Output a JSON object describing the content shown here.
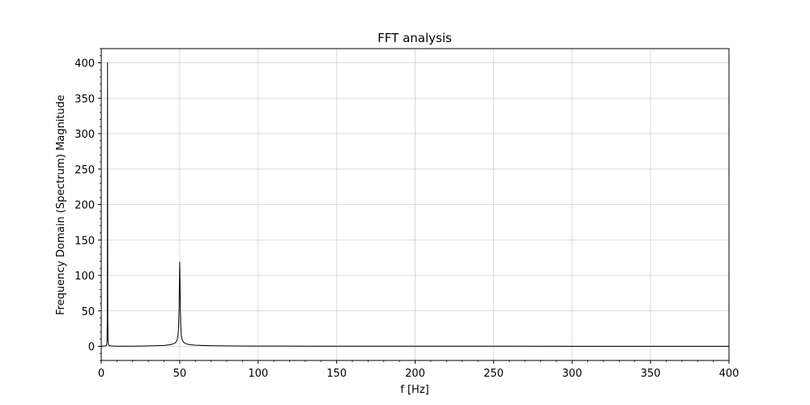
{
  "chart_data": {
    "type": "line",
    "title": "FFT analysis",
    "xlabel": "f [Hz]",
    "ylabel": "Frequency Domain (Spectrum) Magnitude",
    "xlim": [
      0,
      400
    ],
    "ylim": [
      -20,
      420
    ],
    "xticks": [
      0,
      50,
      100,
      150,
      200,
      250,
      300,
      350,
      400
    ],
    "yticks": [
      0,
      50,
      100,
      150,
      200,
      250,
      300,
      350,
      400
    ],
    "xtick_labels": [
      "0",
      "50",
      "100",
      "150",
      "200",
      "250",
      "300",
      "350",
      "400"
    ],
    "ytick_labels": [
      "0",
      "50",
      "100",
      "150",
      "200",
      "250",
      "300",
      "350",
      "400"
    ],
    "x_minor_step": 10,
    "y_minor_step": 10,
    "grid": true,
    "series": [
      {
        "color": "#000000",
        "x": [
          0,
          3,
          3.4,
          3.7,
          3.85,
          4,
          4.15,
          4.3,
          4.6,
          5,
          6,
          8,
          10,
          15,
          20,
          25,
          30,
          35,
          40,
          43,
          45,
          46,
          47,
          48,
          48.5,
          49,
          49.3,
          49.6,
          49.8,
          50,
          50.2,
          50.4,
          50.7,
          51,
          51.5,
          52,
          53,
          54,
          55,
          57,
          60,
          65,
          70,
          80,
          90,
          100,
          120,
          150,
          200,
          250,
          300,
          350,
          400
        ],
        "y": [
          0,
          0.5,
          2,
          8,
          40,
          400,
          40,
          8,
          2,
          1,
          0.5,
          0.3,
          0.2,
          0.1,
          0.2,
          0.3,
          0.5,
          0.8,
          1.3,
          2,
          2.8,
          3.5,
          4.5,
          7,
          10,
          18,
          28,
          55,
          90,
          119,
          90,
          55,
          28,
          16,
          10,
          7,
          4.5,
          3.5,
          2.8,
          2.2,
          1.6,
          1.2,
          0.9,
          0.6,
          0.45,
          0.35,
          0.25,
          0.15,
          0.1,
          0.08,
          0.06,
          0.05,
          0.04
        ]
      }
    ]
  }
}
